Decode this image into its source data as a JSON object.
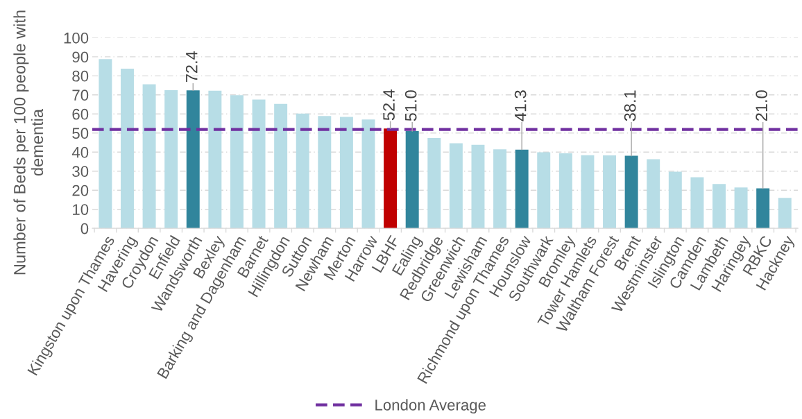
{
  "chart_data": {
    "type": "bar",
    "ylabel": "Number of Beds per 100 people with dementia",
    "categories": [
      "Kingston upon Thames",
      "Havering",
      "Croydon",
      "Enfield",
      "Wandsworth",
      "Bexley",
      "Barking and Dagenham",
      "Barnet",
      "Hillingdon",
      "Sutton",
      "Newham",
      "Merton",
      "Harrow",
      "LBHF",
      "Ealing",
      "Redbridge",
      "Greenwich",
      "Lewisham",
      "Richmond upon Thames",
      "Hounslow",
      "Southwark",
      "Bromley",
      "Tower Hamlets",
      "Waltham Forest",
      "Brent",
      "Westminster",
      "Islington",
      "Camden",
      "Lambeth",
      "Haringey",
      "RBKC",
      "Hackney"
    ],
    "values": [
      88.8,
      83.8,
      75.6,
      72.5,
      72.4,
      72.2,
      69.8,
      67.6,
      65.3,
      60.2,
      58.9,
      58.5,
      57.1,
      52.4,
      51.0,
      47.4,
      44.6,
      43.8,
      41.5,
      41.3,
      39.9,
      39.4,
      38.4,
      38.3,
      38.1,
      36.3,
      29.7,
      26.8,
      23.3,
      21.4,
      21.0,
      16.0
    ],
    "colors": [
      "#b7dde6",
      "#b7dde6",
      "#b7dde6",
      "#b7dde6",
      "#31859c",
      "#b7dde6",
      "#b7dde6",
      "#b7dde6",
      "#b7dde6",
      "#b7dde6",
      "#b7dde6",
      "#b7dde6",
      "#b7dde6",
      "#c00000",
      "#31859c",
      "#b7dde6",
      "#b7dde6",
      "#b7dde6",
      "#b7dde6",
      "#31859c",
      "#b7dde6",
      "#b7dde6",
      "#b7dde6",
      "#b7dde6",
      "#31859c",
      "#b7dde6",
      "#b7dde6",
      "#b7dde6",
      "#b7dde6",
      "#b7dde6",
      "#31859c",
      "#b7dde6"
    ],
    "value_labels": [
      null,
      null,
      null,
      null,
      "72.4",
      null,
      null,
      null,
      null,
      null,
      null,
      null,
      null,
      "52.4",
      "51.0",
      null,
      null,
      null,
      null,
      "41.3",
      null,
      null,
      null,
      null,
      "38.1",
      null,
      null,
      null,
      null,
      null,
      "21.0",
      null
    ],
    "ylim": [
      0,
      100
    ],
    "yticks": [
      0,
      10,
      20,
      30,
      40,
      50,
      60,
      70,
      80,
      90,
      100
    ],
    "ref_lines": [
      {
        "axis": "y",
        "value": 51.9,
        "label": "London Average",
        "color": "#7030a0",
        "line_style": "dashed"
      }
    ],
    "grid": "y",
    "legend": "bottom"
  }
}
